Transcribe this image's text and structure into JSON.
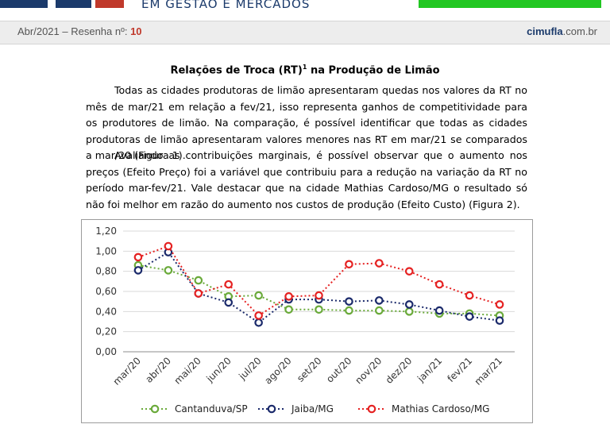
{
  "brand": {
    "subtitle": "EM GESTÃO E MERCADOS"
  },
  "colors": {
    "green_bar": "#22c722",
    "navy": "#1b3a6b",
    "red": "#c0392b"
  },
  "header": {
    "edition_prefix": "Abr/2021 – Resenha nº: ",
    "edition_number": "10",
    "site_name": "cimufla",
    "site_suffix": ".com.br"
  },
  "article": {
    "title_main": "Relações de Troca (RT)",
    "title_sup": "1",
    "title_rest": " na Produção de Limão",
    "paragraph1": "Todas as cidades produtoras de limão apresentaram quedas nos valores da RT no mês de mar/21 em relação a fev/21, isso representa ganhos de competitividade para os produtores de limão. Na comparação, é possível identificar que todas as cidades produtoras de limão apresentaram valores menores nas RT em mar/21 se comparados a mar/20 (Figura 1).",
    "paragraph2": "Avaliando as contribuições marginais, é possível observar que o aumento nos preços (Efeito Preço) foi a variável que contribuiu para a redução na variação da RT no período mar-fev/21. Vale destacar que na cidade Mathias Cardoso/MG o resultado só não foi melhor em razão do aumento nos custos de produção (Efeito Custo) (Figura 2)."
  },
  "chart_data": {
    "type": "line",
    "title": "",
    "xlabel": "",
    "ylabel": "",
    "ylim": [
      0,
      1.2
    ],
    "yticks": [
      "0,00",
      "0,20",
      "0,40",
      "0,60",
      "0,80",
      "1,00",
      "1,20"
    ],
    "categories": [
      "mar/20",
      "abr/20",
      "mai/20",
      "jun/20",
      "jul/20",
      "ago/20",
      "set/20",
      "out/20",
      "nov/20",
      "dez/20",
      "jan/21",
      "fev/21",
      "mar/21"
    ],
    "grid": true,
    "legend": "bottom",
    "series": [
      {
        "name": "Cantanduva/SP",
        "color": "#6aaa3a",
        "values": [
          0.86,
          0.81,
          0.71,
          0.55,
          0.56,
          0.42,
          0.42,
          0.41,
          0.41,
          0.4,
          0.38,
          0.38,
          0.36
        ]
      },
      {
        "name": "Jaiba/MG",
        "color": "#1b2a6b",
        "values": [
          0.81,
          0.99,
          0.58,
          0.49,
          0.29,
          0.52,
          0.52,
          0.5,
          0.51,
          0.47,
          0.41,
          0.35,
          0.31
        ]
      },
      {
        "name": "Mathias Cardoso/MG",
        "color": "#e52222",
        "values": [
          0.94,
          1.05,
          0.58,
          0.67,
          0.36,
          0.55,
          0.56,
          0.87,
          0.88,
          0.8,
          0.67,
          0.56,
          0.47
        ]
      }
    ]
  }
}
